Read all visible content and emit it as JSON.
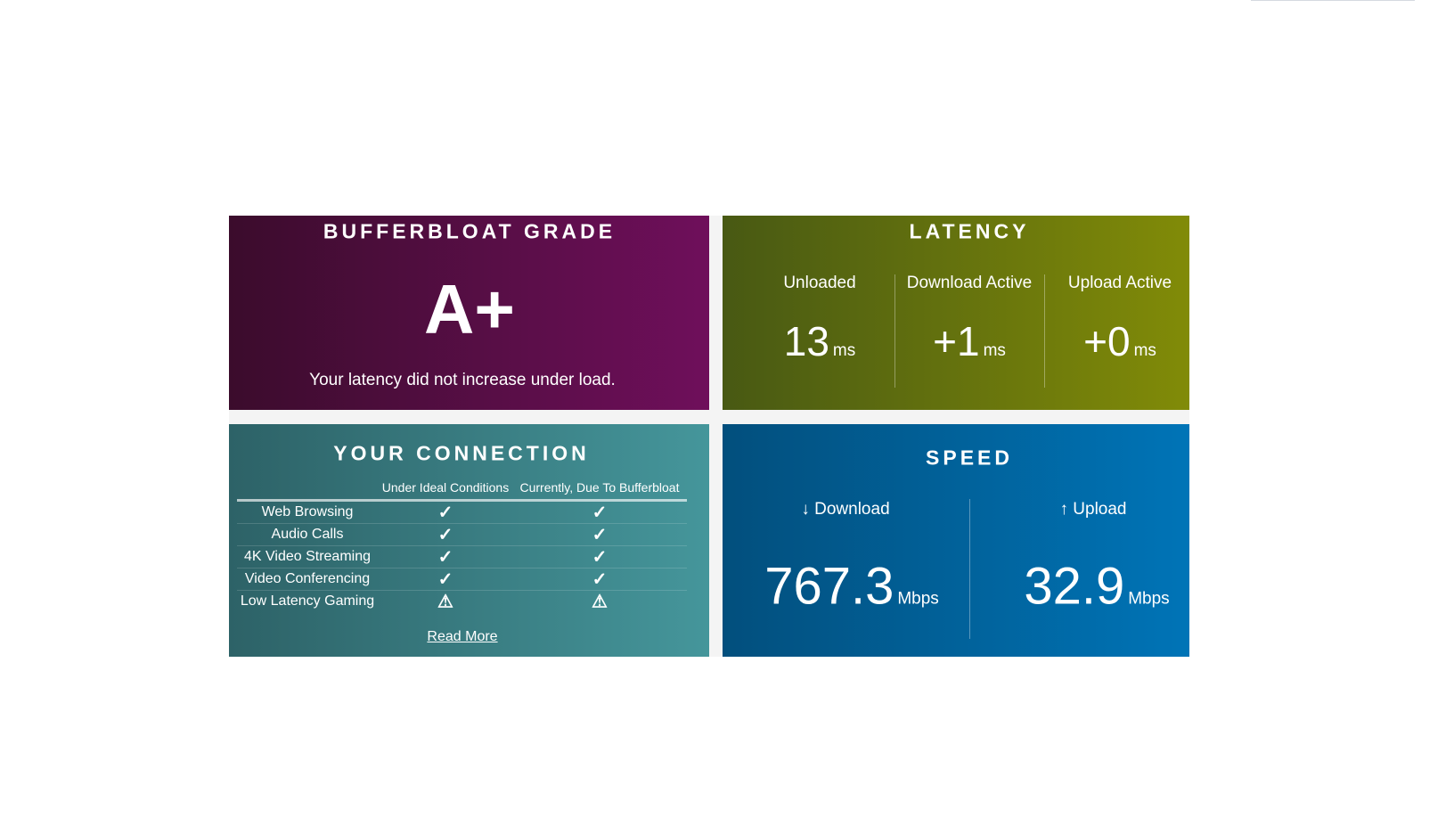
{
  "bufferbloat": {
    "title": "BUFFERBLOAT GRADE",
    "grade": "A+",
    "message": "Your latency did not increase under load."
  },
  "latency": {
    "title": "LATENCY",
    "columns": [
      {
        "label": "Unloaded",
        "value": "13",
        "unit": "ms"
      },
      {
        "label": "Download Active",
        "value": "+1",
        "unit": "ms"
      },
      {
        "label": "Upload Active",
        "value": "+0",
        "unit": "ms"
      }
    ]
  },
  "connection": {
    "title": "YOUR CONNECTION",
    "headers": [
      "Under Ideal Conditions",
      "Currently, Due To Bufferbloat"
    ],
    "rows": [
      {
        "label": "Web Browsing",
        "ideal": "check-icon",
        "current": "check-icon"
      },
      {
        "label": "Audio Calls",
        "ideal": "check-icon",
        "current": "check-icon"
      },
      {
        "label": "4K Video Streaming",
        "ideal": "check-icon",
        "current": "check-icon"
      },
      {
        "label": "Video Conferencing",
        "ideal": "check-icon",
        "current": "check-icon"
      },
      {
        "label": "Low Latency Gaming",
        "ideal": "warning-icon",
        "current": "warning-icon"
      }
    ],
    "read_more": "Read More"
  },
  "speed": {
    "title": "SPEED",
    "download": {
      "label": "↓ Download",
      "value": "767.3",
      "unit": "Mbps"
    },
    "upload": {
      "label": "↑ Upload",
      "value": "32.9",
      "unit": "Mbps"
    }
  },
  "colors": {
    "bufferbloat": "#6f0f5b",
    "latency": "#818b08",
    "connection": "#45969b",
    "speed": "#0074b7"
  }
}
